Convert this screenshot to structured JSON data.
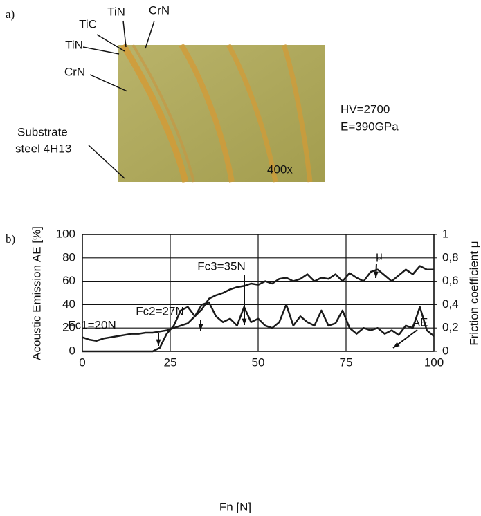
{
  "figure_a": {
    "panel_label": "a)",
    "layers": [
      "TiN",
      "TiC",
      "TiN",
      "CrN",
      "CrN"
    ],
    "substrate": [
      "Substrate",
      "steel 4H13"
    ],
    "magnification": "400x",
    "properties": [
      "HV=2700",
      "E=390GPa"
    ]
  },
  "chart_data": {
    "type": "line",
    "panel_label": "b)",
    "x_label": "Fn [N]",
    "y_label": "Acoustic Emission AE [%]",
    "y2_label": "Friction coefficient μ",
    "annotations": [
      "Fc1=20N",
      "Fc2=27N",
      "Fc3=35N"
    ],
    "x": [
      0,
      2,
      4,
      6,
      8,
      10,
      12,
      14,
      16,
      18,
      20,
      22,
      24,
      26,
      28,
      30,
      32,
      34,
      36,
      38,
      40,
      42,
      44,
      46,
      48,
      50,
      52,
      54,
      56,
      58,
      60,
      62,
      64,
      66,
      68,
      70,
      72,
      74,
      76,
      78,
      80,
      82,
      84,
      86,
      88,
      90,
      92,
      94,
      96,
      98,
      100
    ],
    "series": [
      {
        "name": "AE",
        "color": "#1a1a1a",
        "values": [
          0,
          0,
          0,
          0,
          0,
          0,
          0,
          0,
          0,
          0,
          0,
          3,
          15,
          22,
          35,
          38,
          30,
          40,
          42,
          30,
          25,
          28,
          22,
          38,
          25,
          28,
          22,
          20,
          25,
          40,
          22,
          30,
          25,
          22,
          35,
          22,
          24,
          35,
          20,
          15,
          20,
          18,
          20,
          15,
          18,
          14,
          22,
          20,
          38,
          18,
          13
        ]
      },
      {
        "name": "μ",
        "color": "#1a1a1a",
        "axis": "y2",
        "values": [
          0.12,
          0.1,
          0.09,
          0.11,
          0.12,
          0.13,
          0.14,
          0.15,
          0.15,
          0.16,
          0.16,
          0.17,
          0.18,
          0.2,
          0.22,
          0.24,
          0.3,
          0.36,
          0.45,
          0.48,
          0.5,
          0.53,
          0.55,
          0.56,
          0.58,
          0.57,
          0.6,
          0.58,
          0.62,
          0.63,
          0.6,
          0.62,
          0.66,
          0.6,
          0.63,
          0.62,
          0.66,
          0.6,
          0.67,
          0.63,
          0.6,
          0.68,
          0.7,
          0.65,
          0.6,
          0.65,
          0.7,
          0.66,
          0.73,
          0.7,
          0.7
        ]
      }
    ],
    "xlim": [
      0,
      100
    ],
    "xticks": [
      0,
      25,
      50,
      75,
      100
    ],
    "ylim": [
      0,
      100
    ],
    "yticks": [
      0,
      20,
      40,
      60,
      80,
      100
    ],
    "y2lim": [
      0,
      1
    ],
    "y2ticks": [
      0,
      {
        "value": 0.2,
        "label": "0,2"
      },
      {
        "value": 0.4,
        "label": "0,4"
      },
      {
        "value": 0.6,
        "label": "0,6"
      },
      {
        "value": 0.8,
        "label": "0,8"
      },
      1
    ],
    "grid": true
  }
}
